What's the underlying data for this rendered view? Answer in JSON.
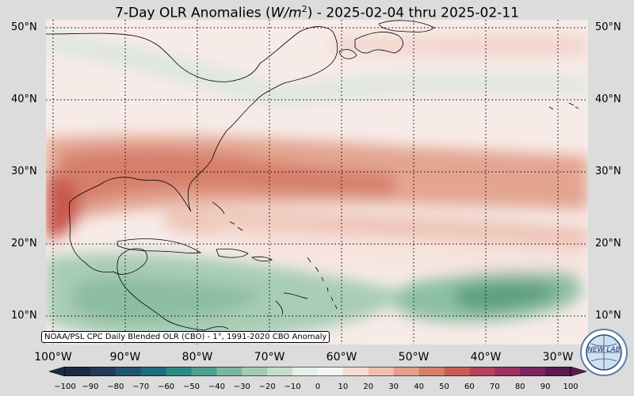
{
  "title": {
    "prefix": "7-Day OLR Anomalies (",
    "units_base": "W/m",
    "units_exp": "2",
    "suffix": ") - 2025-02-04 thru 2025-02-11"
  },
  "latitude_labels": [
    "50°N",
    "40°N",
    "30°N",
    "20°N",
    "10°N"
  ],
  "longitude_labels": [
    "100°W",
    "90°W",
    "80°W",
    "70°W",
    "60°W",
    "50°W",
    "40°W",
    "30°W"
  ],
  "source_note": "NOAA/PSL CPC Daily Blended OLR (CBO) - 1°, 1991-2020 CBO Anomaly",
  "colorbar": {
    "ticks": [
      "−100",
      "−90",
      "−80",
      "−70",
      "−60",
      "−50",
      "−40",
      "−30",
      "−20",
      "−10",
      "0",
      "10",
      "20",
      "30",
      "40",
      "50",
      "60",
      "70",
      "80",
      "90",
      "100"
    ],
    "colors": [
      "#1b2a40",
      "#233b5a",
      "#245372",
      "#1f6b7d",
      "#2d8a86",
      "#4f9f8f",
      "#7bb6a0",
      "#a3cbb3",
      "#c6ddcc",
      "#e6efe8",
      "#f8f4f2",
      "#f6ddd4",
      "#eec0b0",
      "#e2a08c",
      "#d67e6a",
      "#c85d55",
      "#b5445a",
      "#9c3262",
      "#7d2660",
      "#5b1b50"
    ]
  },
  "logo": {
    "text": "NEW LAB",
    "icon": "globe-logo-icon"
  },
  "colors": {
    "background": "#dcdcdc",
    "map_neutral": "#f7ebe8",
    "positive_anomaly": "#d98f7c",
    "negative_anomaly": "#8fbfa3"
  }
}
